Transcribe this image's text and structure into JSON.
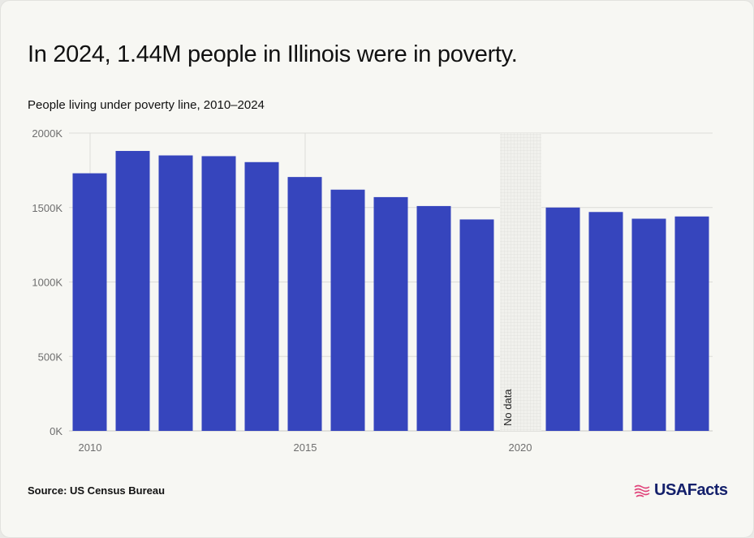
{
  "title": "In 2024, 1.44M people in Illinois were in poverty.",
  "subtitle": "People living under poverty line, 2010–2024",
  "source": "Source: US Census Bureau",
  "brand": "USAFacts",
  "colors": {
    "bar": "#3645bd",
    "grid": "#dcdcd8",
    "axis_text": "#6e6e6e",
    "brand_text": "#14206b",
    "brand_flag": "#e0447a"
  },
  "chart_data": {
    "type": "bar",
    "title": "People living under poverty line, 2010–2024",
    "xlabel": "",
    "ylabel": "",
    "ylim": [
      0,
      2000000
    ],
    "y_ticks": [
      {
        "value": 0,
        "label": "0K"
      },
      {
        "value": 500000,
        "label": "500K"
      },
      {
        "value": 1000000,
        "label": "1000K"
      },
      {
        "value": 1500000,
        "label": "1500K"
      },
      {
        "value": 2000000,
        "label": "2000K"
      }
    ],
    "x_ticks": [
      {
        "value": 2010,
        "label": "2010"
      },
      {
        "value": 2015,
        "label": "2015"
      },
      {
        "value": 2020,
        "label": "2020"
      }
    ],
    "grid": true,
    "categories": [
      2010,
      2011,
      2012,
      2013,
      2014,
      2015,
      2016,
      2017,
      2018,
      2019,
      2020,
      2021,
      2022,
      2023,
      2024
    ],
    "values": [
      1730000,
      1880000,
      1850000,
      1845000,
      1805000,
      1705000,
      1620000,
      1570000,
      1510000,
      1420000,
      null,
      1500000,
      1470000,
      1425000,
      1440000
    ],
    "no_data": {
      "year": 2020,
      "label": "No data"
    }
  }
}
